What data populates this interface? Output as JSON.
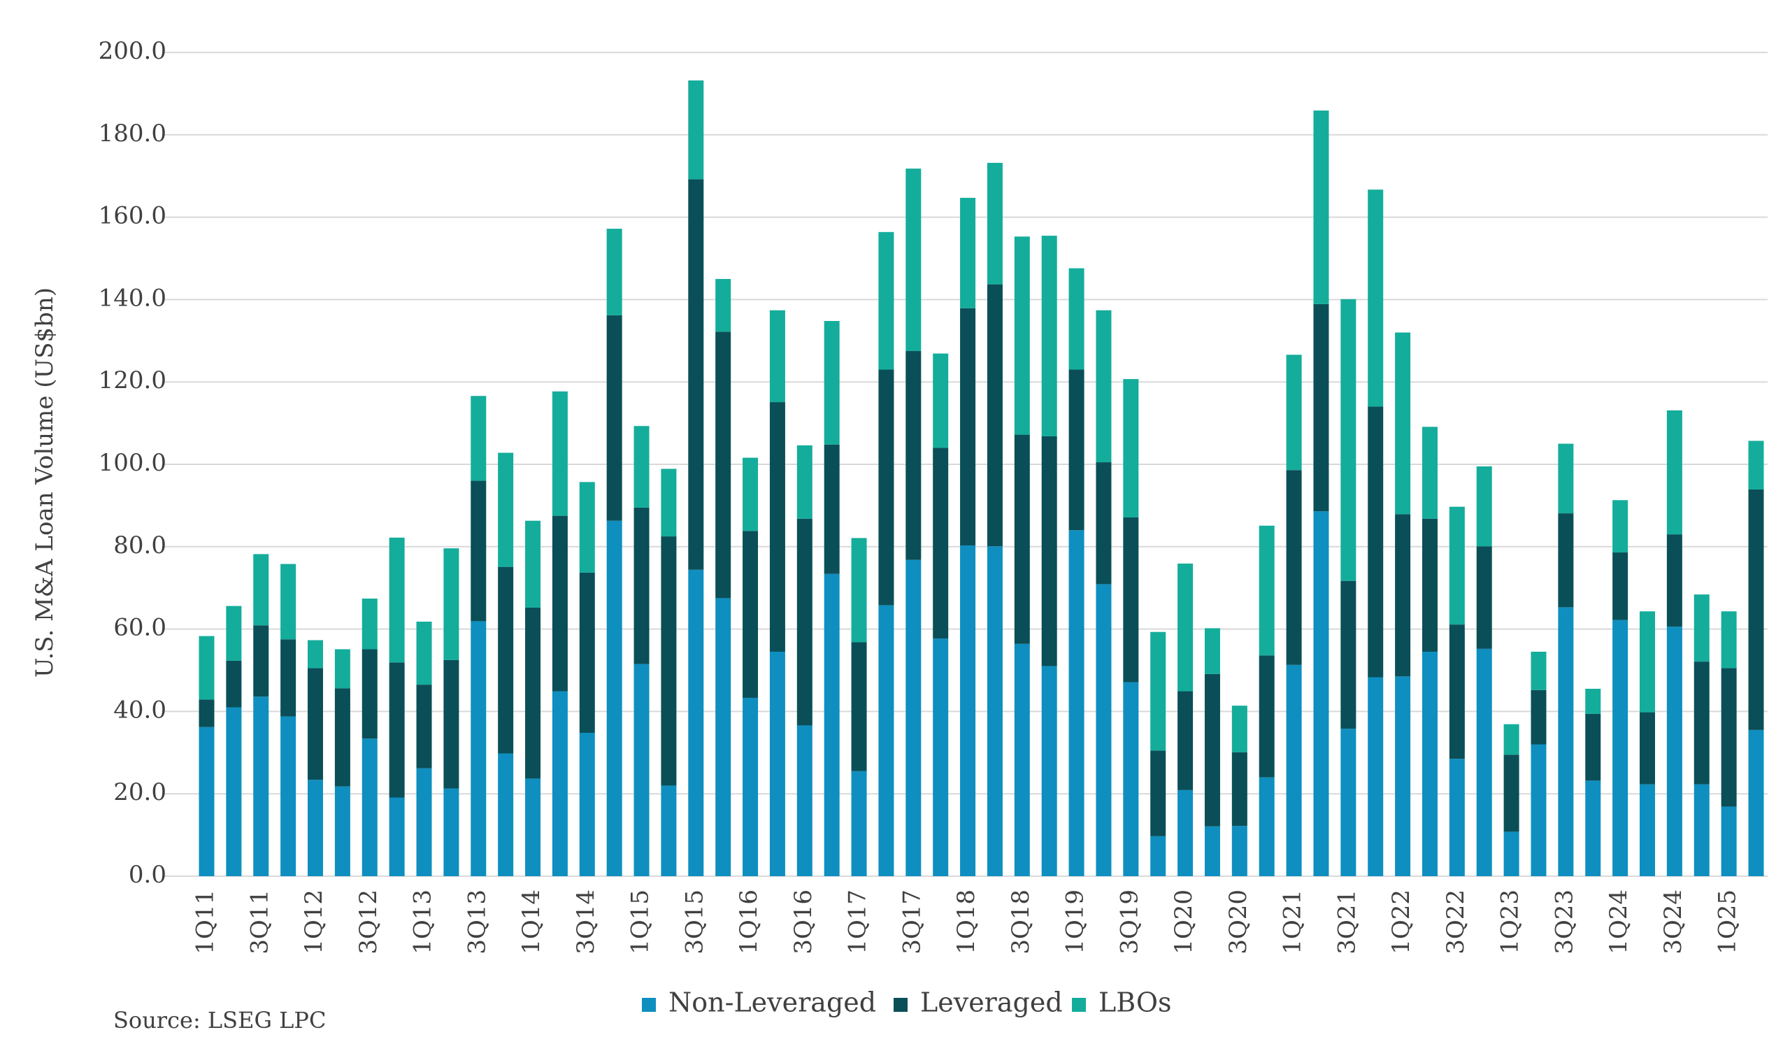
{
  "chart_data": {
    "type": "bar",
    "stacked": true,
    "title": "",
    "xlabel": "",
    "ylabel": "U.S. M&A Loan Volume (US$bn)",
    "ylim": [
      0,
      200
    ],
    "yticks": [
      "0.0",
      "20.0",
      "40.0",
      "60.0",
      "80.0",
      "100.0",
      "120.0",
      "140.0",
      "160.0",
      "180.0",
      "200.0"
    ],
    "grid": true,
    "legend_position": "bottom",
    "categories": [
      "1Q11",
      "2Q11",
      "3Q11",
      "4Q11",
      "1Q12",
      "2Q12",
      "3Q12",
      "4Q12",
      "1Q13",
      "2Q13",
      "3Q13",
      "4Q13",
      "1Q14",
      "2Q14",
      "3Q14",
      "4Q14",
      "1Q15",
      "2Q15",
      "3Q15",
      "4Q15",
      "1Q16",
      "2Q16",
      "3Q16",
      "4Q16",
      "1Q17",
      "2Q17",
      "3Q17",
      "4Q17",
      "1Q18",
      "2Q18",
      "3Q18",
      "4Q18",
      "1Q19",
      "2Q19",
      "3Q19",
      "4Q19",
      "1Q20",
      "2Q20",
      "3Q20",
      "4Q20",
      "1Q21",
      "2Q21",
      "3Q21",
      "4Q21",
      "1Q22",
      "2Q22",
      "3Q22",
      "4Q22",
      "1Q23",
      "2Q23",
      "3Q23",
      "4Q23",
      "1Q24",
      "2Q24",
      "3Q24",
      "4Q24",
      "1Q25",
      "2Q25"
    ],
    "tick_labels": [
      "1Q11",
      "",
      "3Q11",
      "",
      "1Q12",
      "",
      "3Q12",
      "",
      "1Q13",
      "",
      "3Q13",
      "",
      "1Q14",
      "",
      "3Q14",
      "",
      "1Q15",
      "",
      "3Q15",
      "",
      "1Q16",
      "",
      "3Q16",
      "",
      "1Q17",
      "",
      "3Q17",
      "",
      "1Q18",
      "",
      "3Q18",
      "",
      "1Q19",
      "",
      "3Q19",
      "",
      "1Q20",
      "",
      "3Q20",
      "",
      "1Q21",
      "",
      "3Q21",
      "",
      "1Q22",
      "",
      "3Q22",
      "",
      "1Q23",
      "",
      "3Q23",
      "",
      "1Q24",
      "",
      "3Q24",
      "",
      "1Q25",
      ""
    ],
    "series": [
      {
        "name": "Non-Leveraged",
        "color": "#0e8fc0",
        "values": [
          36.2,
          41.0,
          43.6,
          38.8,
          23.4,
          21.8,
          33.4,
          19.1,
          26.2,
          21.3,
          61.9,
          29.8,
          23.7,
          44.9,
          34.8,
          86.3,
          51.5,
          22.0,
          74.4,
          67.5,
          43.3,
          54.5,
          36.6,
          73.4,
          25.5,
          65.8,
          76.8,
          57.7,
          80.3,
          80.1,
          56.4,
          51.0,
          84.0,
          70.9,
          47.1,
          9.7,
          20.9,
          12.1,
          12.2,
          24.0,
          51.3,
          88.6,
          35.8,
          48.3,
          48.5,
          54.5,
          28.5,
          55.2,
          10.8,
          32.0,
          65.3,
          23.2,
          62.2,
          22.3,
          60.6,
          22.3,
          16.9,
          35.5
        ]
      },
      {
        "name": "Leveraged",
        "color": "#0a4f57",
        "values": [
          6.7,
          11.3,
          17.3,
          18.7,
          27.1,
          23.8,
          21.7,
          32.8,
          20.3,
          31.2,
          34.1,
          45.3,
          41.5,
          42.6,
          38.9,
          49.9,
          38.0,
          60.5,
          94.8,
          64.7,
          40.5,
          60.6,
          50.2,
          31.4,
          31.3,
          57.2,
          50.7,
          46.3,
          57.6,
          63.6,
          50.8,
          55.8,
          39.0,
          29.6,
          40.0,
          20.8,
          24.0,
          37.0,
          17.9,
          29.6,
          47.3,
          50.3,
          35.9,
          65.7,
          39.4,
          32.3,
          32.6,
          24.9,
          18.7,
          13.2,
          22.8,
          16.2,
          16.4,
          17.5,
          22.4,
          29.8,
          33.6,
          58.4
        ]
      },
      {
        "name": "LBOs",
        "color": "#14ad9b",
        "values": [
          15.4,
          13.3,
          17.3,
          18.3,
          6.8,
          9.5,
          12.3,
          30.3,
          15.3,
          27.1,
          20.6,
          27.7,
          21.1,
          30.2,
          22.0,
          21.0,
          19.8,
          16.4,
          24.0,
          12.8,
          17.8,
          22.3,
          17.8,
          30.0,
          25.3,
          33.4,
          44.3,
          22.9,
          26.8,
          29.5,
          48.1,
          48.7,
          24.6,
          36.9,
          33.6,
          28.8,
          31.0,
          11.1,
          11.3,
          31.5,
          28.0,
          47.0,
          68.4,
          52.7,
          44.1,
          22.3,
          28.6,
          19.4,
          7.4,
          9.3,
          16.9,
          6.1,
          12.7,
          24.5,
          30.1,
          16.3,
          13.8,
          11.8
        ]
      }
    ]
  },
  "legend": {
    "items": [
      {
        "label": "Non-Leveraged",
        "color": "#0e8fc0"
      },
      {
        "label": "Leveraged",
        "color": "#0a4f57"
      },
      {
        "label": "LBOs",
        "color": "#14ad9b"
      }
    ]
  },
  "source": "Source:  LSEG LPC"
}
